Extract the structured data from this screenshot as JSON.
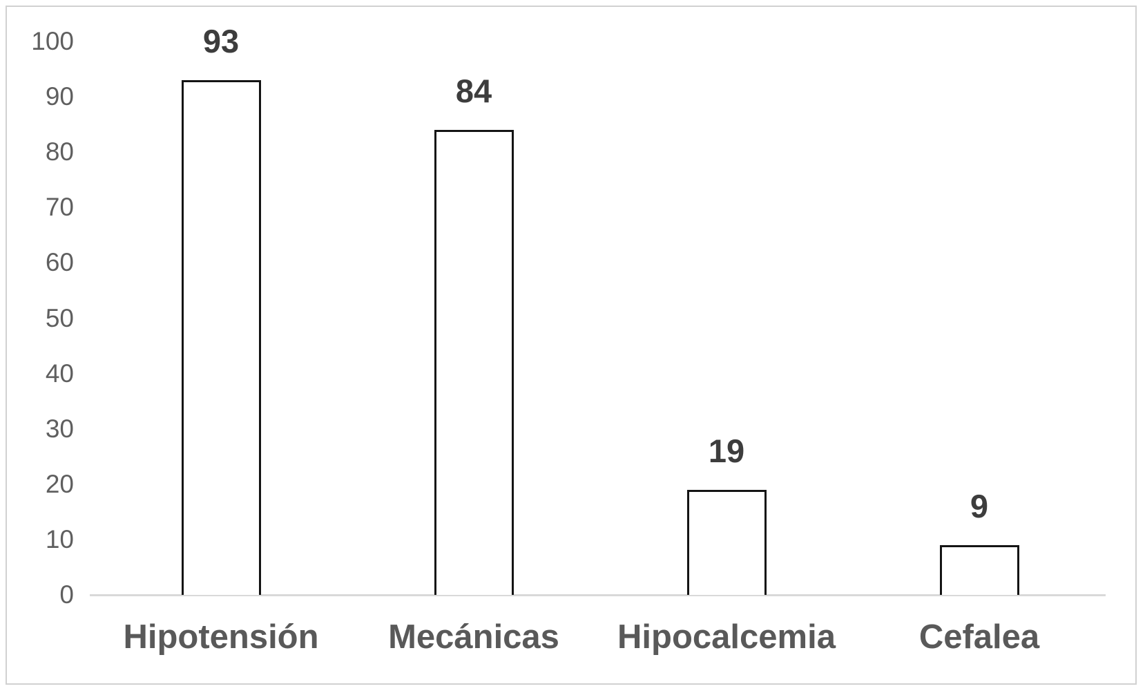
{
  "chart_data": {
    "type": "bar",
    "title": "",
    "xlabel": "",
    "ylabel": "",
    "categories": [
      "Hipotensión",
      "Mecánicas",
      "Hipocalcemia",
      "Cefalea"
    ],
    "values": [
      93,
      84,
      19,
      9
    ],
    "data_labels": [
      "93",
      "84",
      "19",
      "9"
    ],
    "ylim": [
      0,
      100
    ],
    "yticks": [
      100,
      90,
      80,
      70,
      60,
      50,
      40,
      30,
      20,
      10,
      0
    ],
    "grid": false,
    "legend": false,
    "bar_style": "outlined-white",
    "colors": {
      "background": "#ffffff",
      "frame_border": "#d1d1d1",
      "bar_fill": "#ffffff",
      "bar_border": "#141414",
      "axis_line": "#d9d9d9",
      "tick_label": "#5f5f5f",
      "data_label": "#3d3d3d",
      "category_label": "#595959"
    }
  }
}
